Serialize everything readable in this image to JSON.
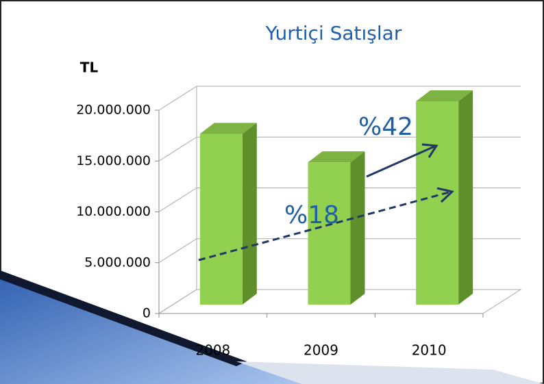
{
  "chart_data": {
    "type": "bar",
    "title": "Yurtiçi Satışlar",
    "y_label": "TL",
    "categories": [
      "2008",
      "2009",
      "2010"
    ],
    "values": [
      16800000,
      14000000,
      20000000
    ],
    "color": "#92d050",
    "ylim": [
      0,
      20000000
    ],
    "yticks": [
      0,
      {
        "value": 5000000,
        "label": "5.000.000"
      },
      {
        "value": 10000000,
        "label": "10.000.000"
      },
      {
        "value": 15000000,
        "label": "15.000.000"
      },
      {
        "value": 20000000,
        "label": "20.000.000"
      }
    ],
    "grid": true,
    "annotations": [
      "%42",
      "%18"
    ]
  }
}
